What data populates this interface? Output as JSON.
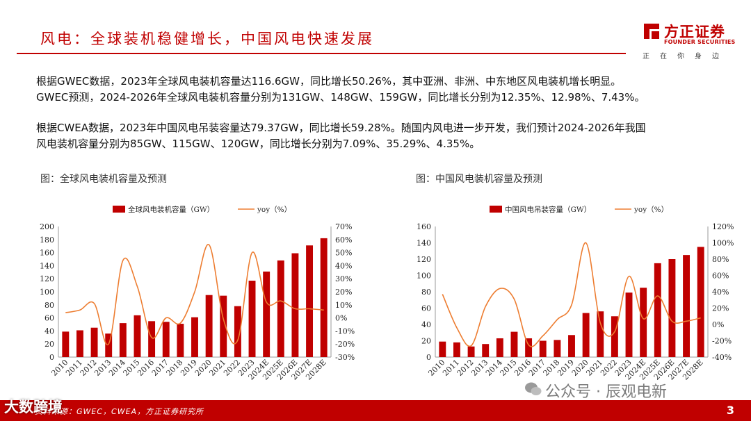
{
  "header": {
    "title": "风电：全球装机稳健增长，中国风电快速发展",
    "logo_name": "方正证券",
    "logo_sub": "FOUNDER SECURITIES",
    "logo_tagline": "正在你身边"
  },
  "paragraphs": [
    "根据GWEC数据，2023年全球风电装机容量达116.6GW，同比增长50.26%，其中亚洲、非洲、中东地区风电装机增长明显。",
    "GWEC预测，2024-2026年全球风电装机容量分别为131GW、148GW、159GW，同比增长分别为12.35%、12.98%、7.43%。",
    "根据CWEA数据，2023年中国风电吊装容量达79.37GW，同比增长59.28%。随国内风电进一步开发，我们预计2024-2026年我国",
    "风电装机容量分别为85GW、115GW、120GW，同比增长分别为7.09%、35.29%、4.35%。"
  ],
  "chart_titles": [
    "图：全球风电装机容量及预测",
    "图：中国风电装机容量及预测"
  ],
  "colors": {
    "brand": "#c00000",
    "bar": "#c00000",
    "line": "#ed7d31"
  },
  "chart_data": [
    {
      "type": "bar",
      "title": "图：全球风电装机容量及预测",
      "categories": [
        "2010",
        "2011",
        "2012",
        "2013",
        "2014",
        "2015",
        "2016",
        "2017",
        "2018",
        "2019",
        "2020",
        "2021",
        "2022",
        "2023",
        "2024E",
        "2025E",
        "2026E",
        "2027E",
        "2028E"
      ],
      "series": [
        {
          "name": "全球风电装机容量（GW）",
          "type": "bar",
          "axis": "left",
          "values": [
            39,
            41,
            45,
            36,
            52,
            64,
            55,
            54,
            51,
            61,
            95,
            94,
            78,
            117,
            131,
            148,
            159,
            171,
            182
          ]
        },
        {
          "name": "yoy（%）",
          "type": "line",
          "axis": "right",
          "values": [
            4,
            6,
            11,
            -20,
            44,
            24,
            -15,
            0,
            -4,
            20,
            56,
            -1,
            -17,
            50,
            12,
            13,
            7,
            7,
            6
          ]
        }
      ],
      "ylim_left": [
        0,
        200
      ],
      "yticks_left": [
        "0",
        "20",
        "40",
        "60",
        "80",
        "100",
        "120",
        "140",
        "160",
        "180",
        "200"
      ],
      "ylim_right": [
        -30,
        70
      ],
      "yticks_right": [
        "-30%",
        "-20%",
        "-10%",
        "0%",
        "10%",
        "20%",
        "30%",
        "40%",
        "50%",
        "60%",
        "70%"
      ],
      "legend": "top"
    },
    {
      "type": "bar",
      "title": "图：中国风电装机容量及预测",
      "categories": [
        "2010",
        "2011",
        "2012",
        "2013",
        "2014",
        "2015",
        "2016",
        "2017",
        "2018",
        "2019",
        "2020",
        "2021",
        "2022",
        "2023",
        "2024E",
        "2025E",
        "2026E",
        "2027E",
        "2028E"
      ],
      "series": [
        {
          "name": "中国风电吊装容量（GW）",
          "type": "bar",
          "axis": "left",
          "values": [
            19,
            18,
            13,
            16,
            23,
            31,
            23,
            20,
            21,
            27,
            54,
            56,
            50,
            79,
            85,
            115,
            120,
            125,
            135
          ]
        },
        {
          "name": "yoy（%）",
          "type": "line",
          "axis": "right",
          "values": [
            37,
            -4,
            -26,
            22,
            44,
            31,
            -25,
            -14,
            6,
            24,
            100,
            2,
            -9,
            59,
            7,
            35,
            4,
            4,
            8
          ]
        }
      ],
      "ylim_left": [
        0,
        160
      ],
      "yticks_left": [
        "0",
        "20",
        "40",
        "60",
        "80",
        "100",
        "120",
        "140",
        "160"
      ],
      "ylim_right": [
        -40,
        120
      ],
      "yticks_right": [
        "-40%",
        "-20%",
        "0%",
        "20%",
        "40%",
        "60%",
        "80%",
        "100%",
        "120%"
      ],
      "legend": "top"
    }
  ],
  "footer": {
    "source": "资料来源：GWEC，CWEA，方正证券研究所",
    "page_number": "3"
  },
  "watermarks": {
    "left": "大数跨境",
    "right": "公众号 · 辰观电新"
  }
}
